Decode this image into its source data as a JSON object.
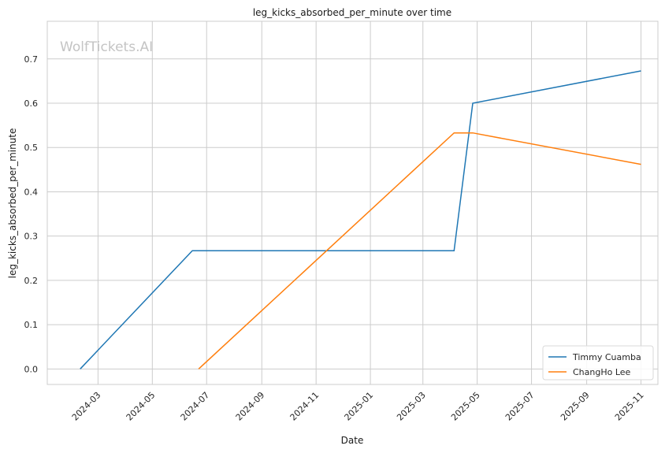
{
  "chart_data": {
    "type": "line",
    "title": "leg_kicks_absorbed_per_minute over time",
    "xlabel": "Date",
    "ylabel": "leg_kicks_absorbed_per_minute",
    "watermark": "WolfTickets.AI",
    "x_type": "date",
    "xlim": [
      "2024-01-04",
      "2025-11-20"
    ],
    "ylim": [
      -0.035,
      0.785
    ],
    "x_ticks": [
      "2024-03-01",
      "2024-05-01",
      "2024-07-01",
      "2024-09-01",
      "2024-11-01",
      "2025-01-01",
      "2025-03-01",
      "2025-05-01",
      "2025-07-01",
      "2025-09-01",
      "2025-11-01"
    ],
    "x_tick_labels": [
      "2024-03",
      "2024-05",
      "2024-07",
      "2024-09",
      "2024-11",
      "2025-01",
      "2025-03",
      "2025-05",
      "2025-07",
      "2025-09",
      "2025-11"
    ],
    "y_ticks": [
      0.0,
      0.1,
      0.2,
      0.3,
      0.4,
      0.5,
      0.6,
      0.7
    ],
    "y_tick_labels": [
      "0.0",
      "0.1",
      "0.2",
      "0.3",
      "0.4",
      "0.5",
      "0.6",
      "0.7"
    ],
    "grid": true,
    "legend_position": "bottom-right",
    "series": [
      {
        "name": "Timmy Cuamba",
        "color": "#1f77b4",
        "points": [
          {
            "x": "2024-02-10",
            "y": 0.0
          },
          {
            "x": "2024-06-15",
            "y": 0.267
          },
          {
            "x": "2025-04-05",
            "y": 0.267
          },
          {
            "x": "2025-04-26",
            "y": 0.6
          },
          {
            "x": "2025-11-01",
            "y": 0.673
          }
        ]
      },
      {
        "name": "ChangHo Lee",
        "color": "#ff7f0e",
        "points": [
          {
            "x": "2024-06-22",
            "y": 0.0
          },
          {
            "x": "2025-04-05",
            "y": 0.533
          },
          {
            "x": "2025-04-26",
            "y": 0.533
          },
          {
            "x": "2025-11-01",
            "y": 0.462
          }
        ]
      }
    ]
  }
}
